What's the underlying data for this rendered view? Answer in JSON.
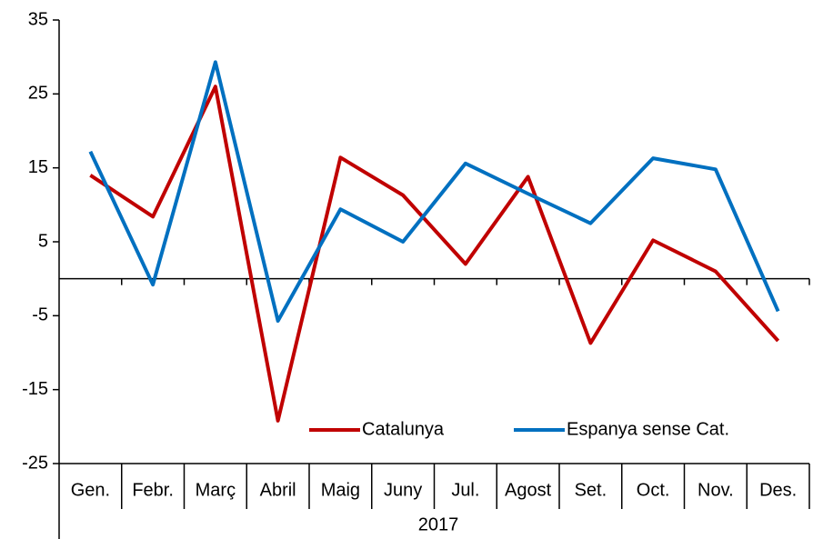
{
  "chart_data": {
    "type": "line",
    "categories": [
      "Gen.",
      "Febr.",
      "Març",
      "Abril",
      "Maig",
      "Juny",
      "Jul.",
      "Agost",
      "Set.",
      "Oct.",
      "Nov.",
      "Des."
    ],
    "xlabel": "2017",
    "series": [
      {
        "name": "Catalunya",
        "color": "#c00000",
        "values": [
          14,
          8.4,
          26,
          -19.2,
          16.4,
          11.3,
          2,
          13.8,
          -8.7,
          5.2,
          1,
          -8.4
        ]
      },
      {
        "name": "Espanya sense Cat.",
        "color": "#0070c0",
        "values": [
          17.2,
          -0.8,
          29.3,
          -5.7,
          9.4,
          5,
          15.6,
          11.5,
          7.5,
          16.3,
          14.8,
          -4.4
        ]
      }
    ],
    "ylim": [
      -25,
      35
    ],
    "yticks": [
      -25,
      -15,
      -5,
      5,
      15,
      25,
      35
    ],
    "grid": false,
    "legend": "lower right"
  }
}
